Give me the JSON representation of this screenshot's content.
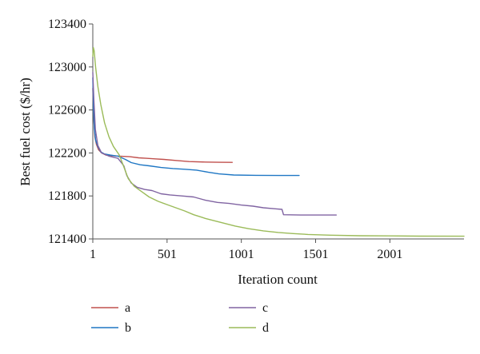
{
  "chart_data": {
    "type": "line",
    "title": "",
    "xlabel": "Iteration count",
    "ylabel": "Best fuel cost ($/hr)",
    "xlim": [
      1,
      2500
    ],
    "ylim": [
      121400,
      123400
    ],
    "x_ticks": [
      "1",
      "501",
      "1001",
      "1501",
      "2001"
    ],
    "y_ticks": [
      "121400",
      "121800",
      "122200",
      "122600",
      "123000",
      "123400"
    ],
    "grid": false,
    "legend_position": "bottom",
    "series": [
      {
        "name": "a",
        "color": "#c0504d",
        "points": [
          [
            1,
            122800
          ],
          [
            8,
            122500
          ],
          [
            15,
            122350
          ],
          [
            25,
            122280
          ],
          [
            40,
            122230
          ],
          [
            60,
            122200
          ],
          [
            90,
            122180
          ],
          [
            130,
            122175
          ],
          [
            180,
            122170
          ],
          [
            250,
            122165
          ],
          [
            310,
            122155
          ],
          [
            360,
            122150
          ],
          [
            420,
            122145
          ],
          [
            480,
            122140
          ],
          [
            560,
            122130
          ],
          [
            650,
            122120
          ],
          [
            760,
            122115
          ],
          [
            850,
            122113
          ],
          [
            940,
            122112
          ]
        ]
      },
      {
        "name": "b",
        "color": "#1f77c4",
        "points": [
          [
            1,
            122900
          ],
          [
            6,
            122600
          ],
          [
            12,
            122420
          ],
          [
            20,
            122320
          ],
          [
            35,
            122260
          ],
          [
            55,
            122210
          ],
          [
            80,
            122190
          ],
          [
            120,
            122180
          ],
          [
            170,
            122170
          ],
          [
            220,
            122140
          ],
          [
            260,
            122110
          ],
          [
            320,
            122090
          ],
          [
            380,
            122080
          ],
          [
            460,
            122065
          ],
          [
            540,
            122055
          ],
          [
            620,
            122048
          ],
          [
            700,
            122040
          ],
          [
            780,
            122020
          ],
          [
            850,
            122005
          ],
          [
            950,
            121995
          ],
          [
            1100,
            121992
          ],
          [
            1250,
            121990
          ],
          [
            1390,
            121990
          ]
        ]
      },
      {
        "name": "c",
        "color": "#8064a2",
        "points": [
          [
            1,
            122950
          ],
          [
            8,
            122700
          ],
          [
            18,
            122420
          ],
          [
            35,
            122270
          ],
          [
            60,
            122200
          ],
          [
            110,
            122170
          ],
          [
            170,
            122150
          ],
          [
            210,
            122080
          ],
          [
            230,
            121990
          ],
          [
            260,
            121920
          ],
          [
            300,
            121880
          ],
          [
            350,
            121860
          ],
          [
            400,
            121850
          ],
          [
            460,
            121820
          ],
          [
            520,
            121810
          ],
          [
            600,
            121800
          ],
          [
            680,
            121790
          ],
          [
            760,
            121760
          ],
          [
            840,
            121740
          ],
          [
            920,
            121730
          ],
          [
            1000,
            121715
          ],
          [
            1080,
            121705
          ],
          [
            1150,
            121690
          ],
          [
            1230,
            121680
          ],
          [
            1275,
            121675
          ],
          [
            1285,
            121625
          ],
          [
            1400,
            121622
          ],
          [
            1500,
            121622
          ],
          [
            1640,
            121622
          ]
        ]
      },
      {
        "name": "d",
        "color": "#9bbb59",
        "points": [
          [
            1,
            123100
          ],
          [
            5,
            123180
          ],
          [
            10,
            123150
          ],
          [
            20,
            123000
          ],
          [
            35,
            122820
          ],
          [
            55,
            122650
          ],
          [
            80,
            122480
          ],
          [
            110,
            122350
          ],
          [
            140,
            122260
          ],
          [
            180,
            122180
          ],
          [
            210,
            122070
          ],
          [
            240,
            121960
          ],
          [
            280,
            121890
          ],
          [
            330,
            121840
          ],
          [
            380,
            121790
          ],
          [
            440,
            121750
          ],
          [
            500,
            121720
          ],
          [
            560,
            121690
          ],
          [
            620,
            121660
          ],
          [
            680,
            121625
          ],
          [
            760,
            121590
          ],
          [
            860,
            121555
          ],
          [
            960,
            121520
          ],
          [
            1050,
            121495
          ],
          [
            1150,
            121475
          ],
          [
            1250,
            121460
          ],
          [
            1350,
            121450
          ],
          [
            1450,
            121442
          ],
          [
            1600,
            121435
          ],
          [
            1800,
            121430
          ],
          [
            2000,
            121428
          ],
          [
            2200,
            121426
          ],
          [
            2500,
            121425
          ]
        ]
      }
    ]
  }
}
